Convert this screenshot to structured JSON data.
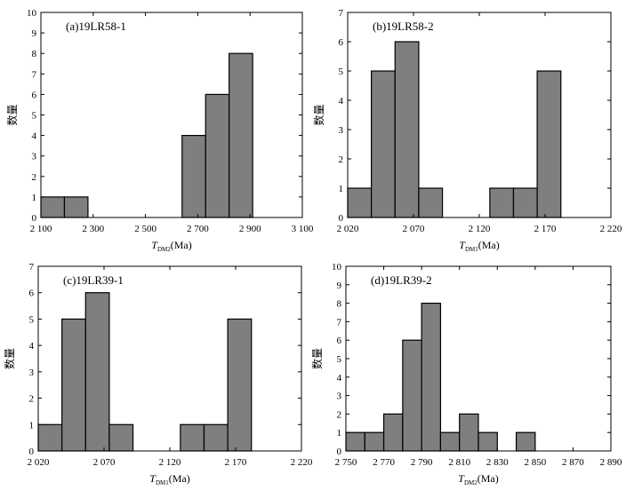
{
  "chart_data": [
    {
      "type": "bar",
      "panel_label": "(a)19LR58-1",
      "ylabel": "数量",
      "xlabel_main": "T",
      "xlabel_sub": "DM2",
      "xlabel_unit": "(Ma)",
      "xlim": [
        2100,
        3100
      ],
      "ylim": [
        0,
        10
      ],
      "xticks": [
        2100,
        2300,
        2500,
        2700,
        2900,
        3100
      ],
      "xtick_labels": [
        "2 100",
        "2 300",
        "2 500",
        "2 700",
        "2 900",
        "3 100"
      ],
      "yticks": [
        0,
        1,
        2,
        3,
        4,
        5,
        6,
        7,
        8,
        9,
        10
      ],
      "bins": [
        {
          "start": 2100,
          "end": 2190,
          "count": 1
        },
        {
          "start": 2190,
          "end": 2280,
          "count": 1
        },
        {
          "start": 2640,
          "end": 2730,
          "count": 4
        },
        {
          "start": 2730,
          "end": 2820,
          "count": 6
        },
        {
          "start": 2820,
          "end": 2910,
          "count": 8
        }
      ]
    },
    {
      "type": "bar",
      "panel_label": "(b)19LR58-2",
      "ylabel": "数量",
      "xlabel_main": "T",
      "xlabel_sub": "DM1",
      "xlabel_unit": "(Ma)",
      "xlim": [
        2020,
        2220
      ],
      "ylim": [
        0,
        7
      ],
      "xticks": [
        2020,
        2070,
        2120,
        2170,
        2220
      ],
      "xtick_labels": [
        "2 020",
        "2 070",
        "2 120",
        "2 170",
        "2 220"
      ],
      "yticks": [
        0,
        1,
        2,
        3,
        4,
        5,
        6,
        7
      ],
      "bins": [
        {
          "start": 2020,
          "end": 2038,
          "count": 1
        },
        {
          "start": 2038,
          "end": 2056,
          "count": 5
        },
        {
          "start": 2056,
          "end": 2074,
          "count": 6
        },
        {
          "start": 2074,
          "end": 2092,
          "count": 1
        },
        {
          "start": 2128,
          "end": 2146,
          "count": 1
        },
        {
          "start": 2146,
          "end": 2164,
          "count": 1
        },
        {
          "start": 2164,
          "end": 2182,
          "count": 5
        }
      ]
    },
    {
      "type": "bar",
      "panel_label": "(c)19LR39-1",
      "ylabel": "数量",
      "xlabel_main": "T",
      "xlabel_sub": "DM1",
      "xlabel_unit": "(Ma)",
      "xlim": [
        2020,
        2220
      ],
      "ylim": [
        0,
        7
      ],
      "xticks": [
        2020,
        2070,
        2120,
        2170,
        2220
      ],
      "xtick_labels": [
        "2 020",
        "2 070",
        "2 120",
        "2 170",
        "2 220"
      ],
      "yticks": [
        0,
        1,
        2,
        3,
        4,
        5,
        6,
        7
      ],
      "bins": [
        {
          "start": 2020,
          "end": 2038,
          "count": 1
        },
        {
          "start": 2038,
          "end": 2056,
          "count": 5
        },
        {
          "start": 2056,
          "end": 2074,
          "count": 6
        },
        {
          "start": 2074,
          "end": 2092,
          "count": 1
        },
        {
          "start": 2128,
          "end": 2146,
          "count": 1
        },
        {
          "start": 2146,
          "end": 2164,
          "count": 1
        },
        {
          "start": 2164,
          "end": 2182,
          "count": 5
        }
      ]
    },
    {
      "type": "bar",
      "panel_label": "(d)19LR39-2",
      "ylabel": "数量",
      "xlabel_main": "T",
      "xlabel_sub": "DM2",
      "xlabel_unit": "(Ma)",
      "xlim": [
        2750,
        2890
      ],
      "ylim": [
        0,
        10
      ],
      "xticks": [
        2750,
        2770,
        2790,
        2810,
        2830,
        2850,
        2870,
        2890
      ],
      "xtick_labels": [
        "2 750",
        "2 770",
        "2 790",
        "2 810",
        "2 830",
        "2 850",
        "2 870",
        "2 890"
      ],
      "yticks": [
        0,
        1,
        2,
        3,
        4,
        5,
        6,
        7,
        8,
        9,
        10
      ],
      "bins": [
        {
          "start": 2750,
          "end": 2760,
          "count": 1
        },
        {
          "start": 2760,
          "end": 2770,
          "count": 1
        },
        {
          "start": 2770,
          "end": 2780,
          "count": 2
        },
        {
          "start": 2780,
          "end": 2790,
          "count": 6
        },
        {
          "start": 2790,
          "end": 2800,
          "count": 8
        },
        {
          "start": 2800,
          "end": 2810,
          "count": 1
        },
        {
          "start": 2810,
          "end": 2820,
          "count": 2
        },
        {
          "start": 2820,
          "end": 2830,
          "count": 1
        },
        {
          "start": 2840,
          "end": 2850,
          "count": 1
        }
      ]
    }
  ]
}
